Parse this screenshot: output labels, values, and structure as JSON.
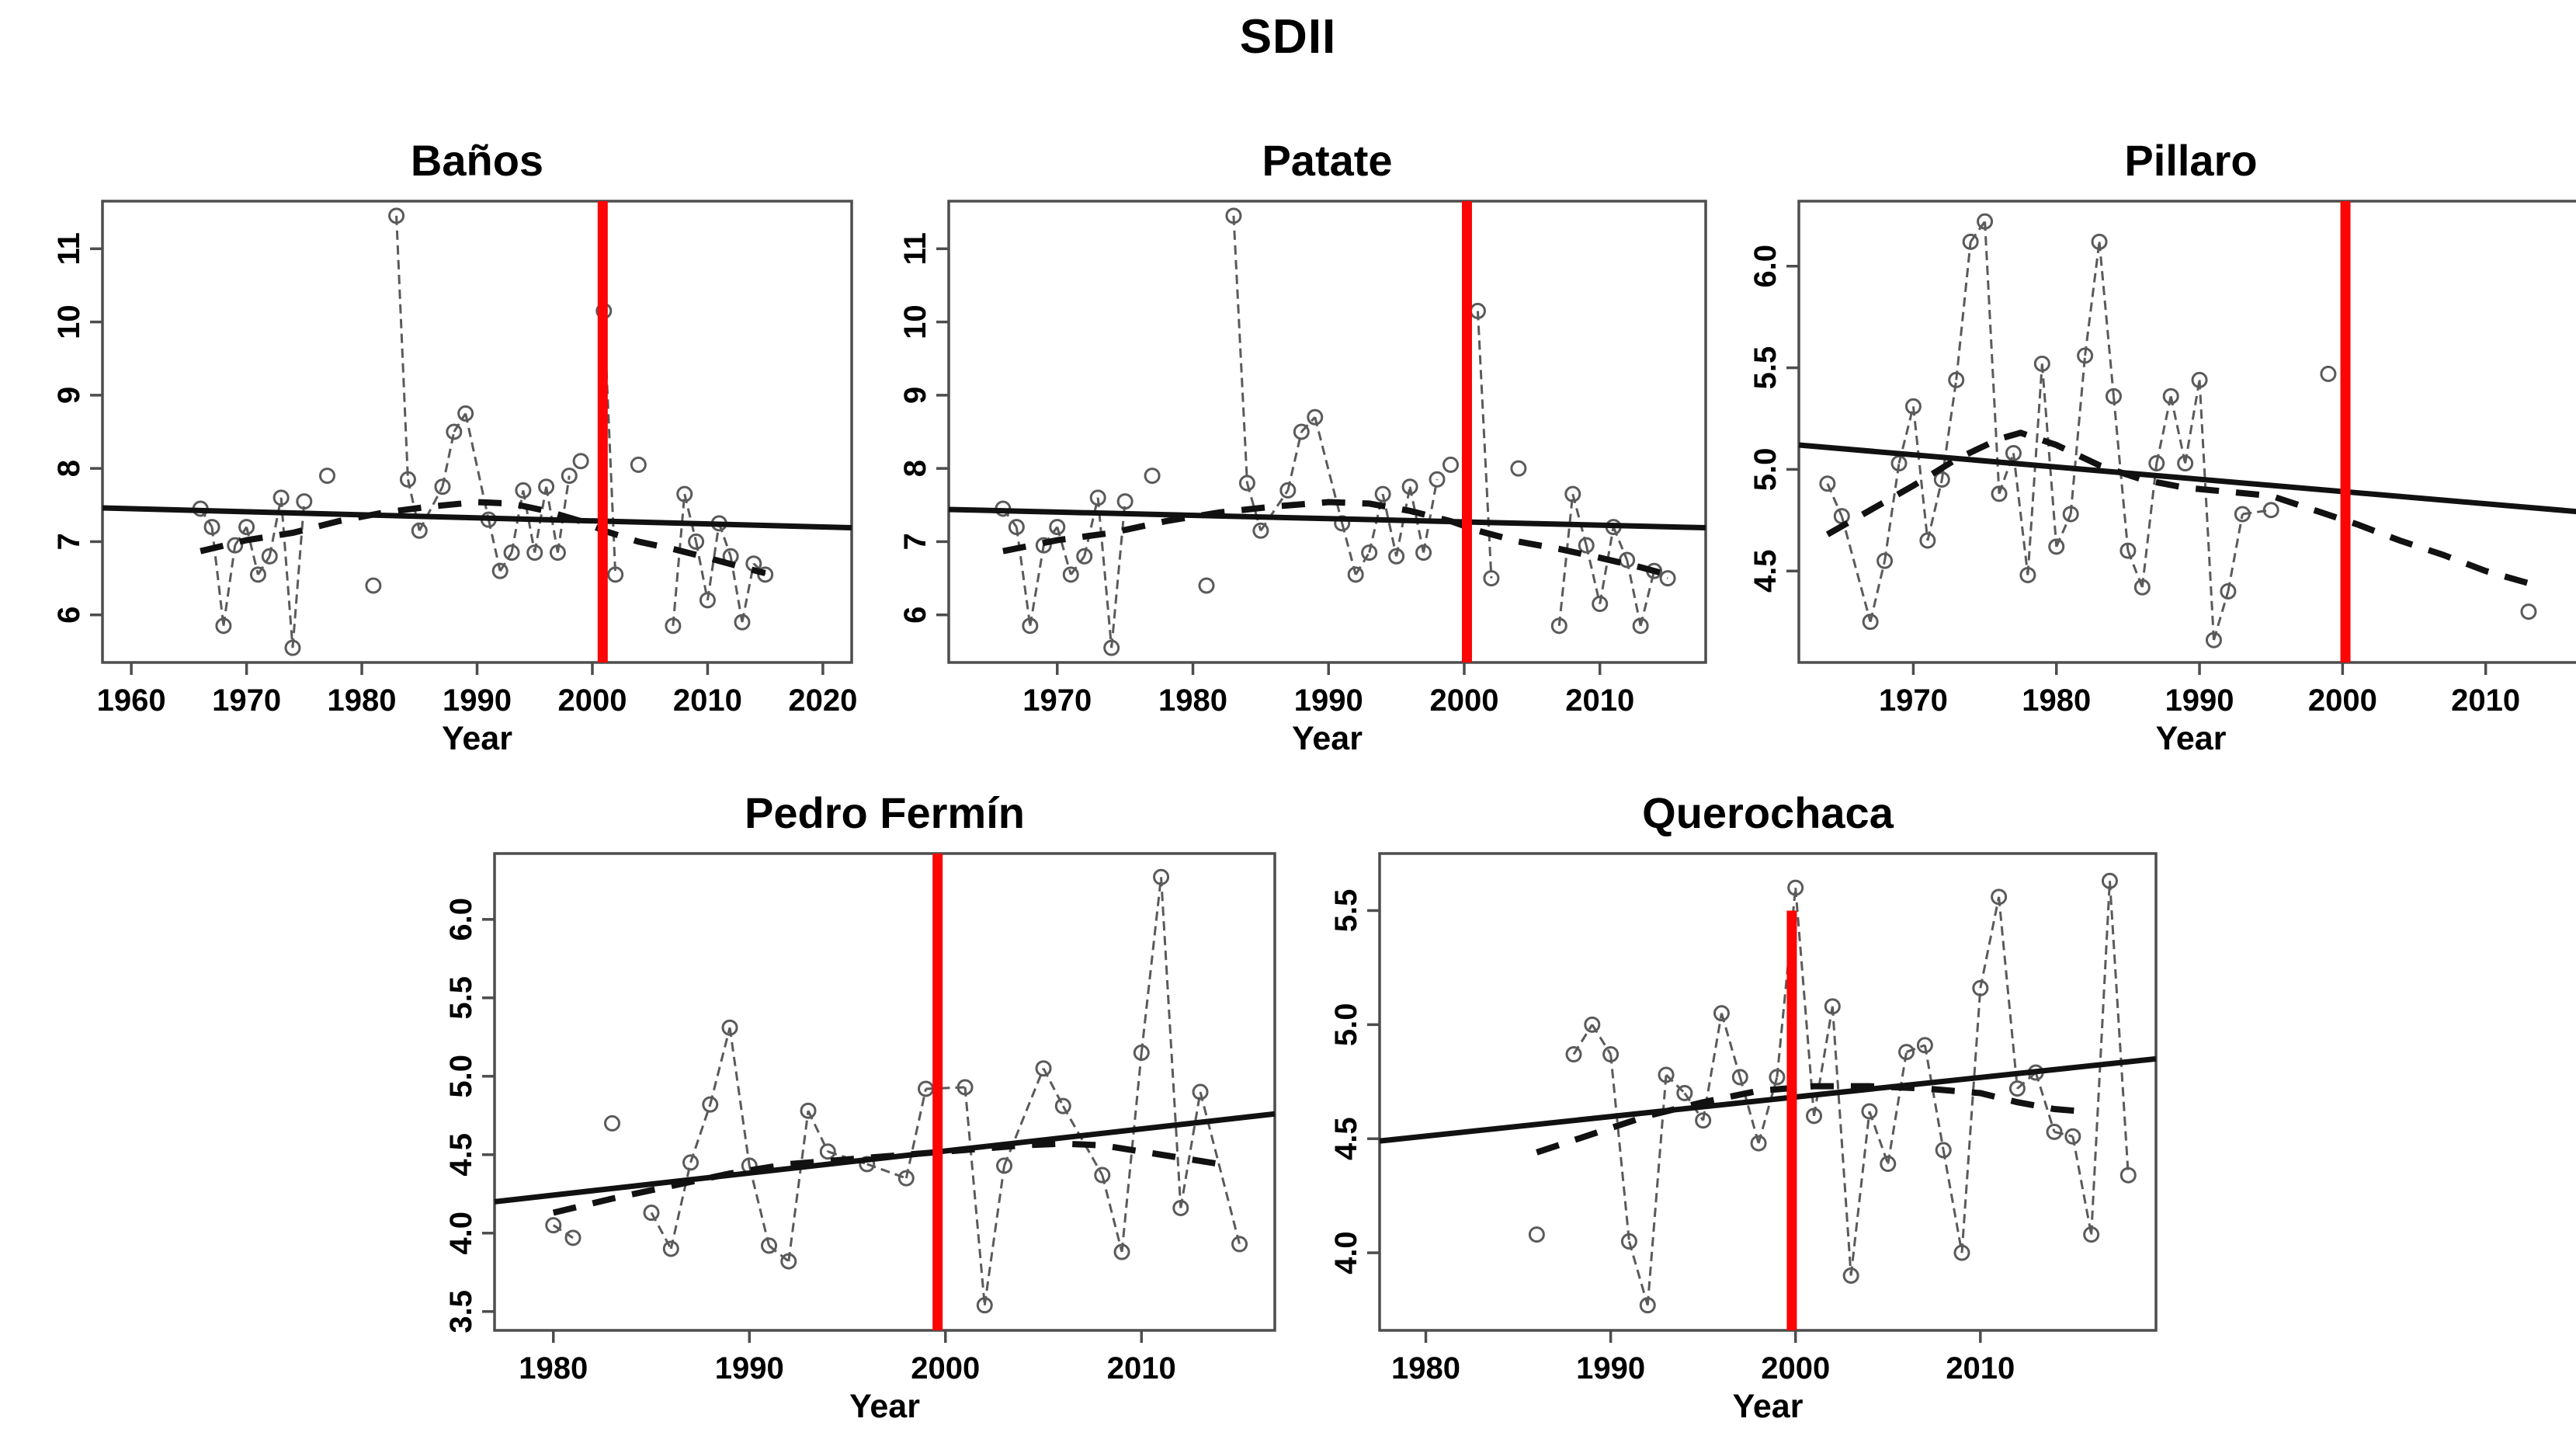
{
  "figure": {
    "title": "SDII"
  },
  "colors": {
    "red_line": "#fb0505",
    "trend": "#111111",
    "series": "#5a5a5a",
    "box": "#4d4d4d",
    "text": "#000000",
    "background": "#ffffff"
  },
  "chart_data": [
    {
      "type": "line",
      "title": "Baños",
      "xlabel": "Year",
      "ylabel": "",
      "xlim": [
        1957.5,
        2022.5
      ],
      "ylim": [
        5.35,
        11.65
      ],
      "x_ticks": [
        1960,
        1970,
        1980,
        1990,
        2000,
        2010,
        2020
      ],
      "y_ticks": [
        6,
        7,
        8,
        9,
        10,
        11
      ],
      "y_tick_format": "int",
      "grid": false,
      "legend": "none",
      "red_line": {
        "x": 2000.9,
        "y_top": null
      },
      "trend": [
        [
          1957.5,
          7.46
        ],
        [
          2022.5,
          7.19
        ]
      ],
      "smooth": [
        [
          1966,
          6.87
        ],
        [
          1970,
          7.02
        ],
        [
          1974,
          7.12
        ],
        [
          1978,
          7.28
        ],
        [
          1982,
          7.4
        ],
        [
          1986,
          7.48
        ],
        [
          1990,
          7.54
        ],
        [
          1993,
          7.52
        ],
        [
          1996,
          7.42
        ],
        [
          1999,
          7.28
        ],
        [
          2001,
          7.15
        ],
        [
          2004,
          7.0
        ],
        [
          2007,
          6.9
        ],
        [
          2010,
          6.78
        ],
        [
          2013,
          6.65
        ],
        [
          2015,
          6.57
        ]
      ],
      "isolated_years": [
        1977,
        1981,
        1999,
        2004
      ],
      "series": {
        "years": [
          1966,
          1967,
          1968,
          1969,
          1970,
          1971,
          1972,
          1973,
          1974,
          1975,
          1977,
          1981,
          1983,
          1984,
          1985,
          1987,
          1988,
          1989,
          1991,
          1992,
          1993,
          1994,
          1995,
          1996,
          1997,
          1998,
          1999,
          2001,
          2002,
          2004,
          2007,
          2008,
          2009,
          2010,
          2011,
          2012,
          2013,
          2014,
          2015
        ],
        "values": [
          7.45,
          7.2,
          5.85,
          6.95,
          7.2,
          6.55,
          6.8,
          7.6,
          5.55,
          7.55,
          7.9,
          6.4,
          11.45,
          7.85,
          7.15,
          7.75,
          8.5,
          8.75,
          7.3,
          6.6,
          6.85,
          7.7,
          6.85,
          7.75,
          6.85,
          7.9,
          8.1,
          10.15,
          6.55,
          8.05,
          5.85,
          7.65,
          7.0,
          6.2,
          7.25,
          6.8,
          5.9,
          6.7,
          6.55
        ]
      }
    },
    {
      "type": "line",
      "title": "Patate",
      "xlabel": "Year",
      "ylabel": "",
      "xlim": [
        1962,
        2017.8
      ],
      "ylim": [
        5.35,
        11.65
      ],
      "x_ticks": [
        1970,
        1980,
        1990,
        2000,
        2010
      ],
      "y_ticks": [
        6,
        7,
        8,
        9,
        10,
        11
      ],
      "y_tick_format": "int",
      "grid": false,
      "legend": "none",
      "red_line": {
        "x": 2000.2,
        "y_top": null
      },
      "trend": [
        [
          1962,
          7.44
        ],
        [
          2017.8,
          7.19
        ]
      ],
      "smooth": [
        [
          1966,
          6.87
        ],
        [
          1970,
          7.02
        ],
        [
          1974,
          7.12
        ],
        [
          1978,
          7.28
        ],
        [
          1982,
          7.4
        ],
        [
          1986,
          7.48
        ],
        [
          1990,
          7.54
        ],
        [
          1993,
          7.52
        ],
        [
          1996,
          7.42
        ],
        [
          1999,
          7.28
        ],
        [
          2001,
          7.15
        ],
        [
          2004,
          7.0
        ],
        [
          2007,
          6.9
        ],
        [
          2010,
          6.78
        ],
        [
          2013,
          6.65
        ],
        [
          2015,
          6.55
        ]
      ],
      "isolated_years": [
        1977,
        1981,
        1999,
        2004
      ],
      "series": {
        "years": [
          1966,
          1967,
          1968,
          1969,
          1970,
          1971,
          1972,
          1973,
          1974,
          1975,
          1977,
          1981,
          1983,
          1984,
          1985,
          1987,
          1988,
          1989,
          1991,
          1992,
          1993,
          1994,
          1995,
          1996,
          1997,
          1998,
          1999,
          2001,
          2002,
          2004,
          2007,
          2008,
          2009,
          2010,
          2011,
          2012,
          2013,
          2014,
          2015
        ],
        "values": [
          7.45,
          7.2,
          5.85,
          6.95,
          7.2,
          6.55,
          6.8,
          7.6,
          5.55,
          7.55,
          7.9,
          6.4,
          11.45,
          7.8,
          7.15,
          7.7,
          8.5,
          8.7,
          7.25,
          6.55,
          6.85,
          7.65,
          6.8,
          7.75,
          6.85,
          7.85,
          8.05,
          10.15,
          6.5,
          8.0,
          5.85,
          7.65,
          6.95,
          6.15,
          7.2,
          6.75,
          5.85,
          6.6,
          6.5
        ]
      }
    },
    {
      "type": "line",
      "title": "Pillaro",
      "xlabel": "Year",
      "ylabel": "",
      "xlim": [
        1962,
        2016.8
      ],
      "ylim": [
        4.05,
        6.32
      ],
      "x_ticks": [
        1970,
        1980,
        1990,
        2000,
        2010
      ],
      "y_ticks": [
        4.5,
        5.0,
        5.5,
        6.0
      ],
      "y_tick_format": "dec",
      "grid": false,
      "legend": "none",
      "red_line": {
        "x": 2000.2,
        "y_top": null
      },
      "trend": [
        [
          1962,
          5.12
        ],
        [
          2016.8,
          4.79
        ]
      ],
      "smooth": [
        [
          1964,
          4.68
        ],
        [
          1967,
          4.8
        ],
        [
          1970,
          4.92
        ],
        [
          1973,
          5.05
        ],
        [
          1976,
          5.15
        ],
        [
          1977.5,
          5.18
        ],
        [
          1980,
          5.12
        ],
        [
          1983,
          5.02
        ],
        [
          1986,
          4.95
        ],
        [
          1989,
          4.91
        ],
        [
          1992,
          4.89
        ],
        [
          1995,
          4.87
        ],
        [
          1998,
          4.8
        ],
        [
          2001,
          4.73
        ],
        [
          2004,
          4.65
        ],
        [
          2007,
          4.58
        ],
        [
          2010,
          4.5
        ],
        [
          2013,
          4.44
        ]
      ],
      "isolated_years": [
        1999,
        2013
      ],
      "series": {
        "years": [
          1964,
          1965,
          1967,
          1968,
          1969,
          1970,
          1971,
          1972,
          1973,
          1974,
          1975,
          1976,
          1977,
          1978,
          1979,
          1980,
          1981,
          1982,
          1983,
          1984,
          1985,
          1986,
          1987,
          1988,
          1989,
          1990,
          1991,
          1992,
          1993,
          1995,
          1999,
          2013
        ],
        "values": [
          4.93,
          4.77,
          4.25,
          4.55,
          5.03,
          5.31,
          4.65,
          4.95,
          5.44,
          6.12,
          6.22,
          4.88,
          5.08,
          4.48,
          5.52,
          4.62,
          4.78,
          5.56,
          6.12,
          5.36,
          4.6,
          4.42,
          5.03,
          5.36,
          5.03,
          5.44,
          4.16,
          4.4,
          4.78,
          4.8,
          5.47,
          4.3
        ]
      }
    },
    {
      "type": "line",
      "title": "Pedro Fermín",
      "xlabel": "Year",
      "ylabel": "",
      "xlim": [
        1977,
        2016.8
      ],
      "ylim": [
        3.38,
        6.42
      ],
      "x_ticks": [
        1980,
        1990,
        2000,
        2010
      ],
      "y_ticks": [
        3.5,
        4.0,
        4.5,
        5.0,
        5.5,
        6.0
      ],
      "y_tick_format": "dec",
      "grid": false,
      "legend": "none",
      "red_line": {
        "x": 1999.6,
        "y_top": null
      },
      "trend": [
        [
          1977,
          4.2
        ],
        [
          2016.8,
          4.76
        ]
      ],
      "smooth": [
        [
          1980,
          4.13
        ],
        [
          1983,
          4.22
        ],
        [
          1986,
          4.3
        ],
        [
          1989,
          4.38
        ],
        [
          1992,
          4.44
        ],
        [
          1995,
          4.47
        ],
        [
          1998,
          4.5
        ],
        [
          2001,
          4.53
        ],
        [
          2004,
          4.56
        ],
        [
          2006,
          4.57
        ],
        [
          2008,
          4.56
        ],
        [
          2010,
          4.52
        ],
        [
          2012,
          4.48
        ],
        [
          2014.5,
          4.43
        ]
      ],
      "isolated_years": [
        1983
      ],
      "series": {
        "years": [
          1980,
          1981,
          1983,
          1985,
          1986,
          1987,
          1988,
          1989,
          1990,
          1991,
          1992,
          1993,
          1994,
          1996,
          1998,
          1999,
          2001,
          2002,
          2003,
          2005,
          2006,
          2008,
          2009,
          2010,
          2011,
          2012,
          2013,
          2015
        ],
        "values": [
          4.05,
          3.97,
          4.7,
          4.13,
          3.9,
          4.45,
          4.82,
          5.31,
          4.43,
          3.92,
          3.82,
          4.78,
          4.52,
          4.44,
          4.35,
          4.92,
          4.93,
          3.54,
          4.43,
          5.05,
          4.81,
          4.37,
          3.88,
          5.15,
          6.27,
          4.16,
          4.9,
          3.93
        ]
      }
    },
    {
      "type": "line",
      "title": "Querochaca",
      "xlabel": "Year",
      "ylabel": "",
      "xlim": [
        1977.5,
        2019.5
      ],
      "ylim": [
        3.66,
        5.75
      ],
      "x_ticks": [
        1980,
        1990,
        2000,
        2010
      ],
      "y_ticks": [
        4.0,
        4.5,
        5.0,
        5.5
      ],
      "y_tick_format": "dec",
      "grid": false,
      "legend": "none",
      "red_line": {
        "x": 1999.8,
        "y_top": 5.5
      },
      "trend": [
        [
          1977.5,
          4.49
        ],
        [
          2019.5,
          4.85
        ]
      ],
      "smooth": [
        [
          1986,
          4.44
        ],
        [
          1989,
          4.52
        ],
        [
          1992,
          4.6
        ],
        [
          1995,
          4.66
        ],
        [
          1998,
          4.71
        ],
        [
          2001,
          4.73
        ],
        [
          2004,
          4.73
        ],
        [
          2007,
          4.72
        ],
        [
          2010,
          4.7
        ],
        [
          2012,
          4.66
        ],
        [
          2014,
          4.63
        ],
        [
          2015.5,
          4.62
        ]
      ],
      "isolated_years": [
        1986
      ],
      "series": {
        "years": [
          1986,
          1988,
          1989,
          1990,
          1991,
          1992,
          1993,
          1994,
          1995,
          1996,
          1997,
          1998,
          1999,
          2000,
          2001,
          2002,
          2003,
          2004,
          2005,
          2006,
          2007,
          2008,
          2009,
          2010,
          2011,
          2012,
          2013,
          2014,
          2015,
          2016,
          2017,
          2018
        ],
        "values": [
          4.08,
          4.87,
          5.0,
          4.87,
          4.05,
          3.77,
          4.78,
          4.7,
          4.58,
          5.05,
          4.77,
          4.48,
          4.77,
          5.6,
          4.6,
          5.08,
          3.9,
          4.62,
          4.39,
          4.88,
          4.91,
          4.45,
          4.0,
          5.16,
          5.56,
          4.72,
          4.79,
          4.53,
          4.51,
          4.08,
          5.63,
          4.34
        ]
      }
    }
  ]
}
